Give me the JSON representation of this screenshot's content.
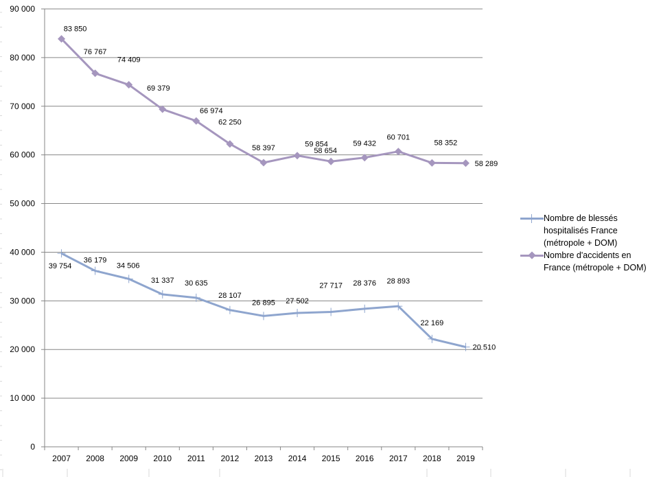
{
  "chart_data": {
    "type": "line",
    "title": "",
    "xlabel": "",
    "ylabel": "",
    "categories": [
      "2007",
      "2008",
      "2009",
      "2010",
      "2011",
      "2012",
      "2013",
      "2014",
      "2015",
      "2016",
      "2017",
      "2018",
      "2019"
    ],
    "ylim": [
      0,
      90000
    ],
    "yticks": [
      0,
      10000,
      20000,
      30000,
      40000,
      50000,
      60000,
      70000,
      80000,
      90000
    ],
    "ytick_labels": [
      "0",
      "10 000",
      "20 000",
      "30 000",
      "40 000",
      "50 000",
      "60 000",
      "70 000",
      "80 000",
      "90 000"
    ],
    "grid": true,
    "legend_position": "right",
    "series": [
      {
        "name": "Nombre de blessés hospitalisés France (métropole + DOM)",
        "legend_lines": [
          "Nombre de blessés",
          "hospitalisés France",
          "(métropole + DOM)"
        ],
        "color": "#8EA5CE",
        "marker": "plus",
        "values": [
          39754,
          36179,
          34506,
          31337,
          30635,
          28107,
          26895,
          27502,
          27717,
          28376,
          28893,
          22169,
          20510
        ],
        "labels": [
          "39 754",
          "36 179",
          "34 506",
          "31 337",
          "30 635",
          "28 107",
          "26 895",
          "27 502",
          "27 717",
          "28 376",
          "28 893",
          "22 169",
          "20 510"
        ]
      },
      {
        "name": "Nombre d'accidents en France (métropole + DOM)",
        "legend_lines": [
          "Nombre d'accidents en",
          "France (métropole + DOM)"
        ],
        "color": "#A596BE",
        "marker": "diamond",
        "values": [
          83850,
          76767,
          74409,
          69379,
          66974,
          62250,
          58397,
          59854,
          58654,
          59432,
          60701,
          58352,
          58289
        ],
        "labels": [
          "83 850",
          "76 767",
          "74 409",
          "69 379",
          "66 974",
          "62 250",
          "58 397",
          "59 854",
          "58 654",
          "59 432",
          "60 701",
          "58 352",
          "58 289"
        ]
      }
    ]
  }
}
